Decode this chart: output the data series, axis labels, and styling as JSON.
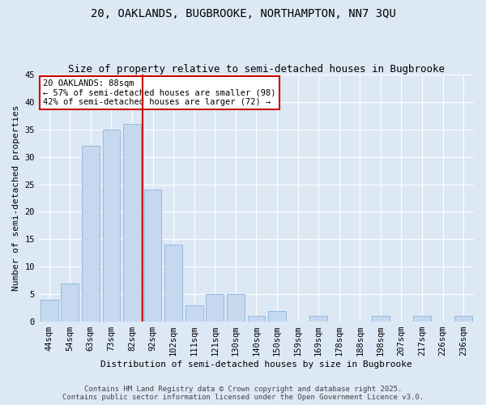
{
  "title1": "20, OAKLANDS, BUGBROOKE, NORTHAMPTON, NN7 3QU",
  "title2": "Size of property relative to semi-detached houses in Bugbrooke",
  "xlabel": "Distribution of semi-detached houses by size in Bugbrooke",
  "ylabel": "Number of semi-detached properties",
  "categories": [
    "44sqm",
    "54sqm",
    "63sqm",
    "73sqm",
    "82sqm",
    "92sqm",
    "102sqm",
    "111sqm",
    "121sqm",
    "130sqm",
    "140sqm",
    "150sqm",
    "159sqm",
    "169sqm",
    "178sqm",
    "188sqm",
    "198sqm",
    "207sqm",
    "217sqm",
    "226sqm",
    "236sqm"
  ],
  "values": [
    4,
    7,
    32,
    35,
    36,
    24,
    14,
    3,
    5,
    5,
    1,
    2,
    0,
    1,
    0,
    0,
    1,
    0,
    1,
    0,
    1
  ],
  "bar_color": "#c5d8f0",
  "bar_edge_color": "#8ab4d8",
  "vline_x": 4.5,
  "annotation_text_line1": "20 OAKLANDS: 88sqm",
  "annotation_text_line2": "← 57% of semi-detached houses are smaller (98)",
  "annotation_text_line3": "42% of semi-detached houses are larger (72) →",
  "annotation_box_color": "#ffffff",
  "annotation_box_edge": "#cc0000",
  "vline_color": "#cc0000",
  "ylim": [
    0,
    45
  ],
  "yticks": [
    0,
    5,
    10,
    15,
    20,
    25,
    30,
    35,
    40,
    45
  ],
  "footer1": "Contains HM Land Registry data © Crown copyright and database right 2025.",
  "footer2": "Contains public sector information licensed under the Open Government Licence v3.0.",
  "bg_color": "#dde8f5",
  "plot_bg_color": "#dde8f5",
  "title1_fontsize": 10,
  "title2_fontsize": 9,
  "axis_label_fontsize": 8,
  "tick_fontsize": 7.5,
  "annotation_fontsize": 7.5,
  "footer_fontsize": 6.5
}
